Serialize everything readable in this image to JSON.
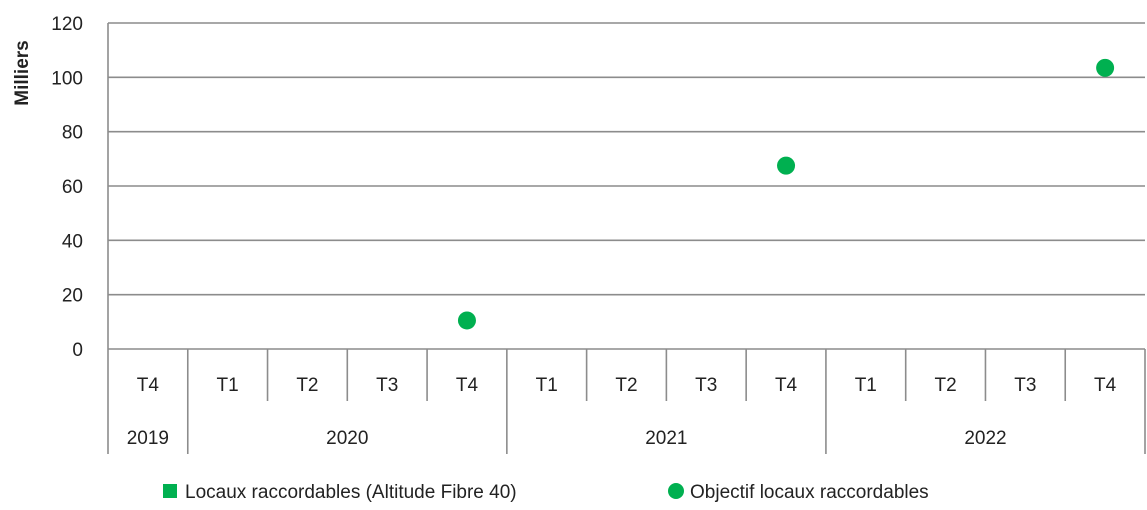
{
  "chart_data": {
    "type": "scatter",
    "ylabel": "Milliers",
    "ylim": [
      0,
      120
    ],
    "yticks": [
      0,
      20,
      40,
      60,
      80,
      100,
      120
    ],
    "grid": true,
    "legend_position": "bottom",
    "categories": [
      "T4",
      "T1",
      "T2",
      "T3",
      "T4",
      "T1",
      "T2",
      "T3",
      "T4",
      "T1",
      "T2",
      "T3",
      "T4"
    ],
    "year_groups": [
      {
        "label": "2019",
        "start": 0,
        "count": 1
      },
      {
        "label": "2020",
        "start": 1,
        "count": 4
      },
      {
        "label": "2021",
        "start": 5,
        "count": 4
      },
      {
        "label": "2022",
        "start": 9,
        "count": 4
      }
    ],
    "series": [
      {
        "name": "Locaux raccordables (Altitude Fibre 40)",
        "marker": "square",
        "color": "#00b050",
        "values": [
          null,
          null,
          null,
          null,
          null,
          null,
          null,
          null,
          null,
          null,
          null,
          null,
          null
        ]
      },
      {
        "name": "Objectif locaux raccordables",
        "marker": "circle",
        "color": "#00b050",
        "values": [
          null,
          null,
          null,
          null,
          10.5,
          null,
          null,
          null,
          67.5,
          null,
          null,
          null,
          103.5
        ]
      }
    ]
  }
}
